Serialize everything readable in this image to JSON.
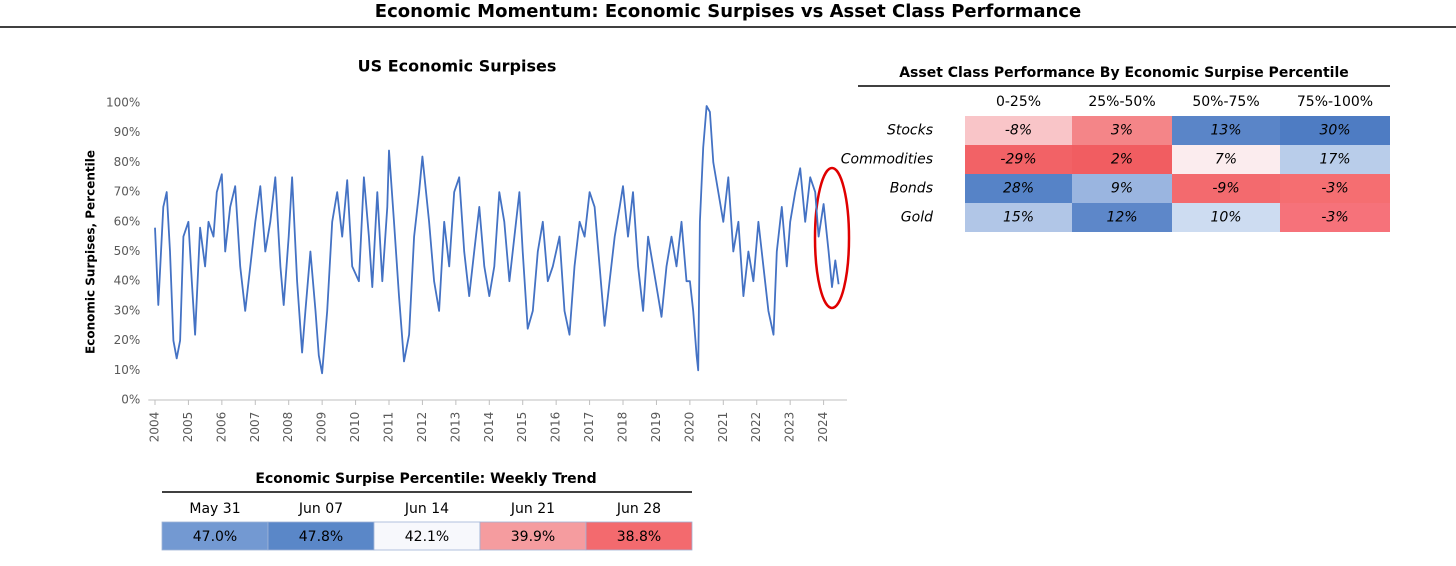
{
  "title": "Economic Momentum: Economic Surpises vs Asset Class Performance",
  "chart_data": {
    "type": "line",
    "title": "US Economic Surpises",
    "ylabel": "Economic Surpises, Percentile",
    "color": "#4472c4",
    "x": [
      2004.0,
      2004.1,
      2004.25,
      2004.35,
      2004.45,
      2004.55,
      2004.65,
      2004.75,
      2004.85,
      2005.0,
      2005.1,
      2005.2,
      2005.35,
      2005.5,
      2005.6,
      2005.75,
      2005.85,
      2006.0,
      2006.1,
      2006.25,
      2006.4,
      2006.55,
      2006.7,
      2006.85,
      2007.0,
      2007.15,
      2007.3,
      2007.45,
      2007.6,
      2007.75,
      2007.85,
      2008.0,
      2008.1,
      2008.25,
      2008.4,
      2008.5,
      2008.65,
      2008.8,
      2008.9,
      2009.0,
      2009.15,
      2009.3,
      2009.45,
      2009.6,
      2009.75,
      2009.9,
      2010.1,
      2010.25,
      2010.4,
      2010.5,
      2010.65,
      2010.8,
      2010.95,
      2011.0,
      2011.15,
      2011.3,
      2011.45,
      2011.6,
      2011.75,
      2011.9,
      2012.0,
      2012.2,
      2012.35,
      2012.5,
      2012.65,
      2012.8,
      2012.95,
      2013.1,
      2013.25,
      2013.4,
      2013.55,
      2013.7,
      2013.85,
      2014.0,
      2014.15,
      2014.3,
      2014.45,
      2014.6,
      2014.75,
      2014.9,
      2015.0,
      2015.15,
      2015.3,
      2015.45,
      2015.6,
      2015.75,
      2015.9,
      2016.1,
      2016.25,
      2016.4,
      2016.55,
      2016.7,
      2016.85,
      2017.0,
      2017.15,
      2017.3,
      2017.45,
      2017.6,
      2017.75,
      2017.9,
      2018.0,
      2018.15,
      2018.3,
      2018.45,
      2018.6,
      2018.75,
      2018.9,
      2019.05,
      2019.15,
      2019.3,
      2019.45,
      2019.6,
      2019.75,
      2019.9,
      2020.0,
      2020.1,
      2020.2,
      2020.25,
      2020.3,
      2020.4,
      2020.5,
      2020.6,
      2020.7,
      2020.85,
      2021.0,
      2021.15,
      2021.3,
      2021.45,
      2021.6,
      2021.75,
      2021.9,
      2022.05,
      2022.2,
      2022.35,
      2022.5,
      2022.6,
      2022.75,
      2022.9,
      2023.0,
      2023.15,
      2023.3,
      2023.45,
      2023.6,
      2023.75,
      2023.85,
      2024.0,
      2024.15,
      2024.25,
      2024.35,
      2024.45
    ],
    "values": [
      58,
      32,
      65,
      70,
      50,
      20,
      14,
      20,
      55,
      60,
      40,
      22,
      58,
      45,
      60,
      55,
      70,
      76,
      50,
      65,
      72,
      45,
      30,
      45,
      60,
      72,
      50,
      60,
      75,
      45,
      32,
      55,
      75,
      40,
      16,
      30,
      50,
      30,
      15,
      9,
      30,
      60,
      70,
      55,
      74,
      45,
      40,
      75,
      55,
      38,
      70,
      40,
      65,
      84,
      60,
      35,
      13,
      22,
      55,
      70,
      82,
      60,
      40,
      30,
      60,
      45,
      70,
      75,
      50,
      35,
      50,
      65,
      45,
      35,
      45,
      70,
      60,
      40,
      55,
      70,
      50,
      24,
      30,
      50,
      60,
      40,
      45,
      55,
      30,
      22,
      45,
      60,
      55,
      70,
      65,
      45,
      25,
      40,
      55,
      65,
      72,
      55,
      70,
      45,
      30,
      55,
      45,
      35,
      28,
      45,
      55,
      45,
      60,
      40,
      40,
      30,
      15,
      10,
      60,
      85,
      99,
      97,
      80,
      70,
      60,
      75,
      50,
      60,
      35,
      50,
      40,
      60,
      45,
      30,
      22,
      50,
      65,
      45,
      60,
      70,
      78,
      60,
      75,
      70,
      55,
      66,
      50,
      38,
      47,
      39
    ],
    "xlim": [
      2003.8,
      2024.7
    ],
    "xticks": [
      2004,
      2005,
      2006,
      2007,
      2008,
      2009,
      2010,
      2011,
      2012,
      2013,
      2014,
      2015,
      2016,
      2017,
      2018,
      2019,
      2020,
      2021,
      2022,
      2023,
      2024
    ],
    "ylim": [
      0,
      100
    ],
    "yticks": [
      {
        "value": 0,
        "label": "0%"
      },
      {
        "value": 10,
        "label": "10%"
      },
      {
        "value": 20,
        "label": "20%"
      },
      {
        "value": 30,
        "label": "30%"
      },
      {
        "value": 40,
        "label": "40%"
      },
      {
        "value": 50,
        "label": "50%"
      },
      {
        "value": 60,
        "label": "60%"
      },
      {
        "value": 70,
        "label": "70%"
      },
      {
        "value": 80,
        "label": "80%"
      },
      {
        "value": 90,
        "label": "90%"
      },
      {
        "value": 100,
        "label": "100%"
      }
    ]
  },
  "asset_table": {
    "title": "Asset Class Performance By Economic Surpise Percentile",
    "columns": [
      "0-25%",
      "25%-50%",
      "50%-75%",
      "75%-100%"
    ],
    "rows": [
      {
        "label": "Stocks",
        "cells": [
          "-8%",
          "3%",
          "13%",
          "30%"
        ],
        "colors": [
          "#f9c5c8",
          "#f48588",
          "#5a85c8",
          "#4e7cc3"
        ]
      },
      {
        "label": "Commodities",
        "cells": [
          "-29%",
          "2%",
          "7%",
          "17%"
        ],
        "colors": [
          "#f26266",
          "#f15d61",
          "#fbecee",
          "#b9cdea"
        ]
      },
      {
        "label": "Bonds",
        "cells": [
          "28%",
          "9%",
          "-9%",
          "-3%"
        ],
        "colors": [
          "#5683c7",
          "#9ab5e0",
          "#f36a6e",
          "#f56e71"
        ]
      },
      {
        "label": "Gold",
        "cells": [
          "15%",
          "12%",
          "10%",
          "-3%"
        ],
        "colors": [
          "#b1c6e7",
          "#5d87c9",
          "#cddcf1",
          "#f6727a"
        ]
      }
    ]
  },
  "weekly_table": {
    "title": "Economic Surpise Percentile: Weekly Trend",
    "columns": [
      "May 31",
      "Jun 07",
      "Jun 14",
      "Jun 21",
      "Jun 28"
    ],
    "cells": [
      "47.0%",
      "47.8%",
      "42.1%",
      "39.9%",
      "38.8%"
    ],
    "colors": [
      "#7399d2",
      "#5a87c8",
      "#f7f8fc",
      "#f59c9f",
      "#f36a6e"
    ]
  }
}
